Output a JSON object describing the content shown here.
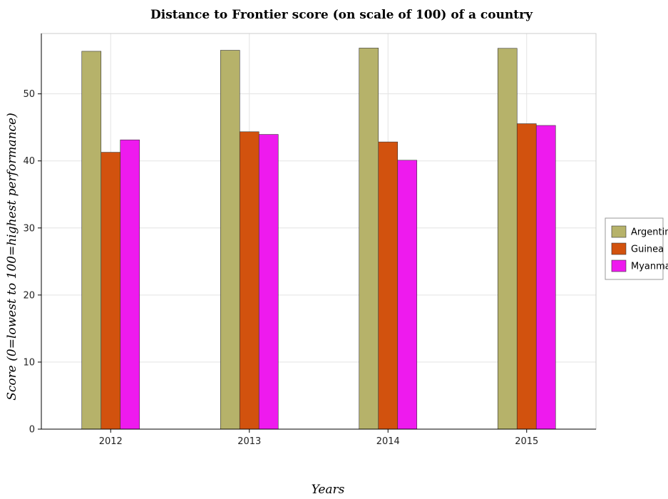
{
  "title": "Distance to Frontier score (on scale of 100) of a country",
  "colors": {
    "Argentina": "#b6b26a",
    "Guinea": "#d2520e",
    "Myanmar": "#ee1aee"
  },
  "chart_data": {
    "type": "bar",
    "title": "Distance to Frontier score (on scale of 100) of a country",
    "xlabel": "Years",
    "ylabel": "Score (0=lowest to 100=highest performance)",
    "categories": [
      "2012",
      "2013",
      "2014",
      "2015"
    ],
    "series": [
      {
        "name": "Argentina",
        "values": [
          56.35,
          56.5,
          56.83,
          56.79
        ]
      },
      {
        "name": "Guinea",
        "values": [
          41.29,
          44.35,
          42.83,
          45.55
        ]
      },
      {
        "name": "Myanmar",
        "values": [
          43.14,
          43.95,
          40.1,
          45.29
        ]
      }
    ],
    "ylim": [
      0,
      59
    ],
    "yticks": [
      0,
      10,
      20,
      30,
      40,
      50
    ],
    "grid": true,
    "legend_position": "right"
  }
}
